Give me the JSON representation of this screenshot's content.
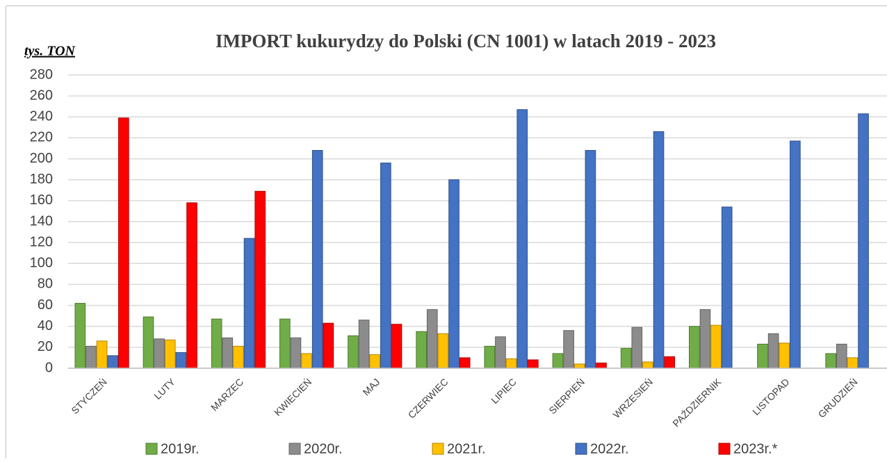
{
  "chart_data": {
    "type": "bar",
    "title": "IMPORT kukurydzy do Polski (CN 1001) w latach 2019 - 2023",
    "y_label": "tys. TON",
    "categories": [
      "STYCZEŃ",
      "LUTY",
      "MARZEC",
      "KWIECIEŃ",
      "MAJ",
      "CZERWIEC",
      "LIPIEC",
      "SIERPIEŃ",
      "WRZESIEŃ",
      "PAŹDZIERNIK",
      "LISTOPAD",
      "GRUDZIEŃ"
    ],
    "series": [
      {
        "name": "2019r.",
        "color": "#70ad47",
        "values": [
          62,
          49,
          47,
          47,
          31,
          35,
          21,
          14,
          19,
          40,
          23,
          14
        ]
      },
      {
        "name": "2020r.",
        "color": "#8c8c8c",
        "values": [
          21,
          28,
          29,
          29,
          46,
          56,
          30,
          36,
          39,
          56,
          33,
          23
        ]
      },
      {
        "name": "2021r.",
        "color": "#ffc000",
        "values": [
          26,
          27,
          21,
          14,
          13,
          33,
          9,
          4,
          6,
          41,
          24,
          10
        ]
      },
      {
        "name": "2022r.",
        "color": "#4472c4",
        "values": [
          12,
          15,
          124,
          208,
          196,
          180,
          247,
          208,
          226,
          154,
          217,
          243
        ]
      },
      {
        "name": "2023r.*",
        "color": "#ff0000",
        "values": [
          239,
          158,
          169,
          43,
          42,
          10,
          8,
          5,
          11,
          null,
          null,
          null
        ]
      }
    ],
    "ylim": [
      0,
      280
    ],
    "yticks": [
      0,
      20,
      40,
      60,
      80,
      100,
      120,
      140,
      160,
      180,
      200,
      220,
      240,
      260,
      280
    ],
    "grid": true
  }
}
